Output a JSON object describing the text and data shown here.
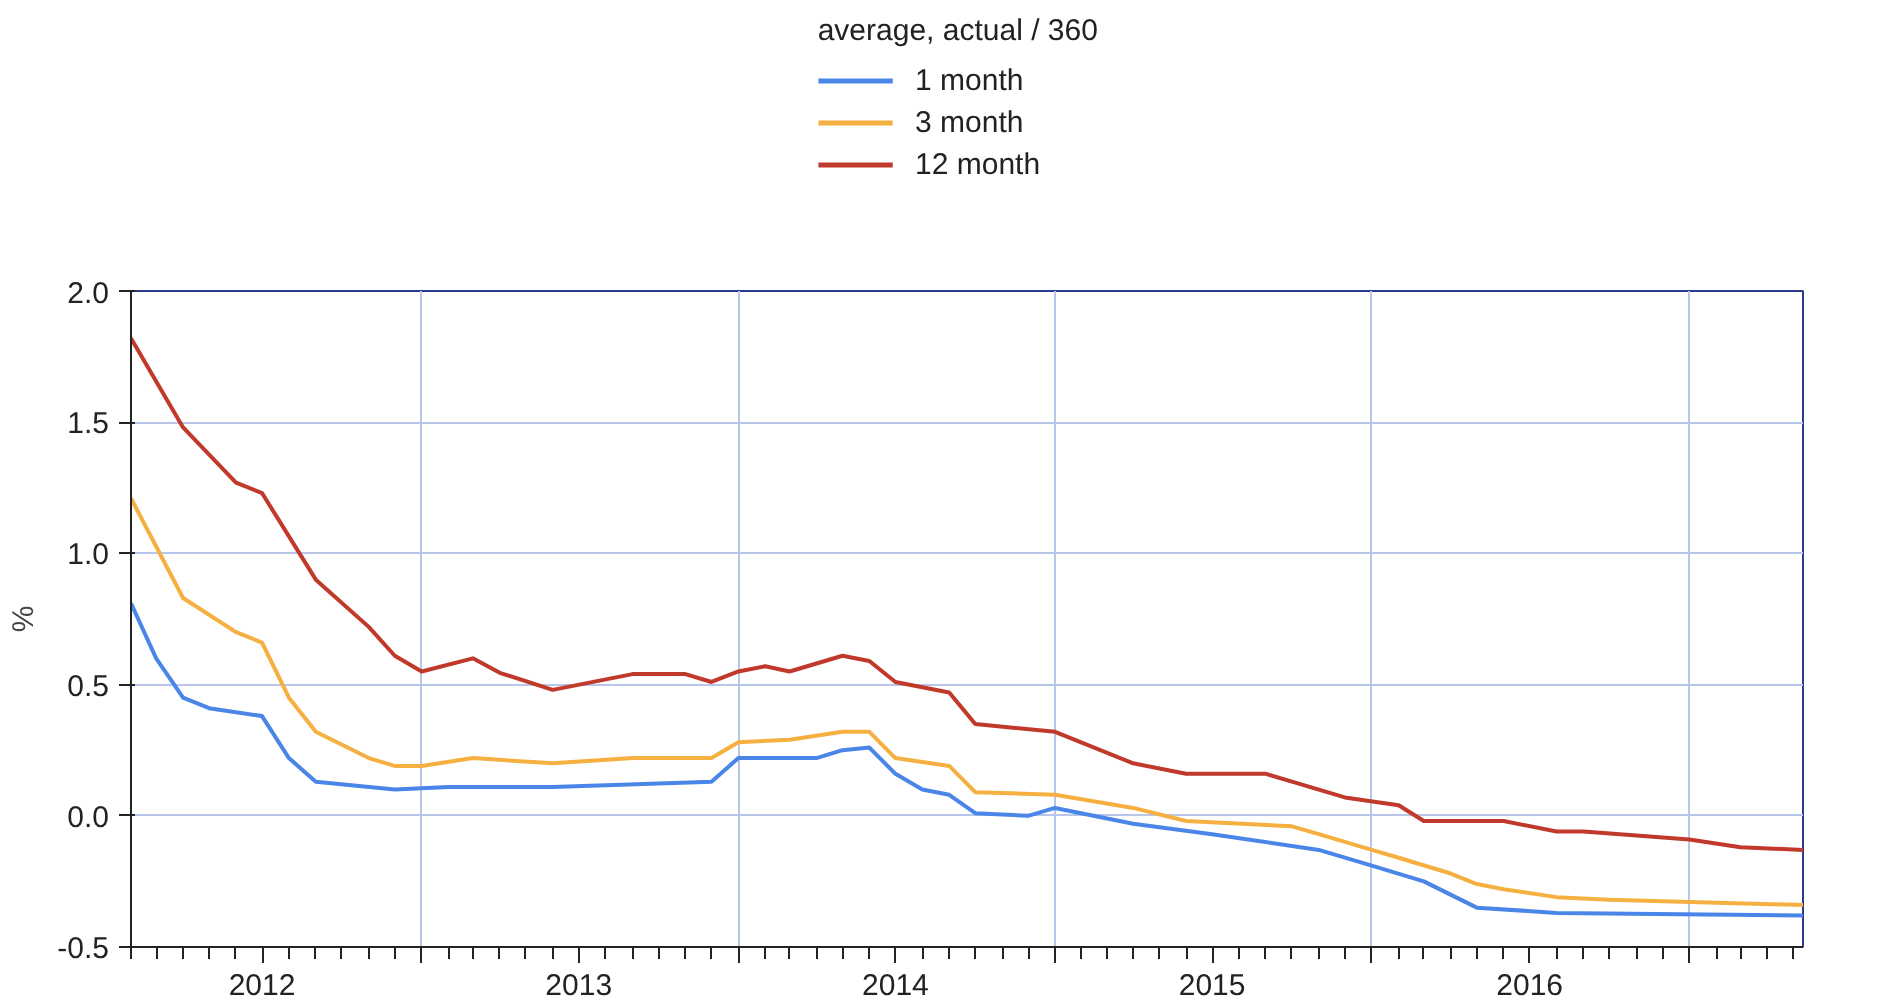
{
  "chart_data": {
    "type": "line",
    "ylabel": "%",
    "legend_title": "average, actual / 360",
    "legend": "top",
    "grid": true,
    "line_style": "solid",
    "xlim": [
      "2012-02-01",
      "2017-05-12"
    ],
    "ylim": [
      -0.5,
      2.0
    ],
    "xticks": [
      {
        "value": "2012-07-01",
        "label": "2012"
      },
      {
        "value": "2013-01-01",
        "label": null
      },
      {
        "value": "2013-07-01",
        "label": "2013"
      },
      {
        "value": "2014-01-01",
        "label": null
      },
      {
        "value": "2014-07-01",
        "label": "2014"
      },
      {
        "value": "2015-01-01",
        "label": null
      },
      {
        "value": "2015-07-01",
        "label": "2015"
      },
      {
        "value": "2016-01-01",
        "label": null
      },
      {
        "value": "2016-07-01",
        "label": "2016"
      },
      {
        "value": "2017-01-01",
        "label": null
      }
    ],
    "yticks": [
      -0.5,
      {
        "value": 0,
        "label": "0.0"
      },
      0.5,
      {
        "value": 1,
        "label": "1.0"
      },
      1.5,
      {
        "value": 2,
        "label": "2.0"
      }
    ],
    "series": [
      {
        "name": "1 month",
        "color": "#4a86e8",
        "x": [
          "2012-02-01",
          "2012-03-01",
          "2012-04-01",
          "2012-05-01",
          "2012-07-01",
          "2012-08-01",
          "2012-09-01",
          "2012-12-01",
          "2013-02-01",
          "2013-06-01",
          "2013-12-01",
          "2014-01-01",
          "2014-04-01",
          "2014-05-01",
          "2014-06-01",
          "2014-07-01",
          "2014-08-01",
          "2014-09-01",
          "2014-10-01",
          "2014-12-01",
          "2015-01-01",
          "2015-04-01",
          "2015-07-01",
          "2015-11-01",
          "2016-01-01",
          "2016-03-01",
          "2016-05-01",
          "2016-08-01",
          "2017-05-12"
        ],
        "values": [
          0.81,
          0.6,
          0.45,
          0.41,
          0.38,
          0.22,
          0.13,
          0.1,
          0.11,
          0.11,
          0.13,
          0.22,
          0.22,
          0.25,
          0.26,
          0.16,
          0.1,
          0.08,
          0.01,
          0.0,
          0.03,
          -0.03,
          -0.07,
          -0.13,
          -0.19,
          -0.25,
          -0.35,
          -0.37,
          -0.38
        ]
      },
      {
        "name": "3 month",
        "color": "#f5b041",
        "x": [
          "2012-02-01",
          "2012-04-01",
          "2012-06-01",
          "2012-07-01",
          "2012-08-01",
          "2012-09-01",
          "2012-11-01",
          "2012-12-01",
          "2013-01-01",
          "2013-03-01",
          "2013-06-01",
          "2013-09-01",
          "2013-12-01",
          "2014-01-01",
          "2014-03-01",
          "2014-05-01",
          "2014-06-01",
          "2014-07-01",
          "2014-09-01",
          "2014-10-01",
          "2015-01-01",
          "2015-04-01",
          "2015-06-01",
          "2015-10-01",
          "2015-11-01",
          "2016-01-01",
          "2016-02-01",
          "2016-04-01",
          "2016-05-01",
          "2016-06-01",
          "2016-08-01",
          "2016-10-01",
          "2017-05-12"
        ],
        "values": [
          1.21,
          0.83,
          0.7,
          0.66,
          0.45,
          0.32,
          0.22,
          0.19,
          0.19,
          0.22,
          0.2,
          0.22,
          0.22,
          0.28,
          0.29,
          0.32,
          0.32,
          0.22,
          0.19,
          0.09,
          0.08,
          0.03,
          -0.02,
          -0.04,
          -0.07,
          -0.13,
          -0.16,
          -0.22,
          -0.26,
          -0.28,
          -0.31,
          -0.32,
          -0.34
        ]
      },
      {
        "name": "12 month",
        "color": "#c0392b",
        "x": [
          "2012-02-01",
          "2012-04-01",
          "2012-06-01",
          "2012-07-01",
          "2012-09-01",
          "2012-11-01",
          "2012-12-01",
          "2013-01-01",
          "2013-03-01",
          "2013-04-01",
          "2013-06-01",
          "2013-09-01",
          "2013-11-01",
          "2013-12-01",
          "2014-01-01",
          "2014-02-01",
          "2014-03-01",
          "2014-05-01",
          "2014-06-01",
          "2014-07-01",
          "2014-09-01",
          "2014-10-01",
          "2015-01-01",
          "2015-04-01",
          "2015-06-01",
          "2015-09-01",
          "2015-10-01",
          "2015-12-01",
          "2016-02-01",
          "2016-03-01",
          "2016-06-01",
          "2016-08-01",
          "2016-09-01",
          "2017-01-01",
          "2017-03-01",
          "2017-05-12"
        ],
        "values": [
          1.82,
          1.48,
          1.27,
          1.23,
          0.9,
          0.72,
          0.61,
          0.55,
          0.6,
          0.545,
          0.48,
          0.54,
          0.54,
          0.51,
          0.55,
          0.57,
          0.55,
          0.61,
          0.59,
          0.51,
          0.47,
          0.35,
          0.32,
          0.2,
          0.16,
          0.16,
          0.13,
          0.07,
          0.04,
          -0.02,
          -0.02,
          -0.06,
          -0.06,
          -0.09,
          -0.12,
          -0.13
        ]
      }
    ]
  }
}
